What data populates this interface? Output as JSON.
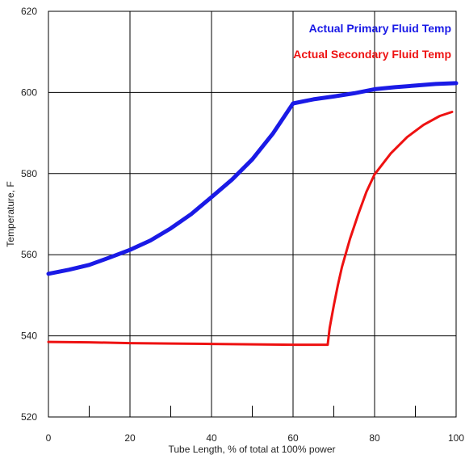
{
  "chart_data": {
    "type": "line",
    "title": "",
    "xlabel": "Tube Length, % of total at 100% power",
    "ylabel": "Temperature, F",
    "xlim": [
      0,
      100
    ],
    "ylim": [
      520,
      620
    ],
    "xticks": [
      0,
      20,
      40,
      60,
      80,
      100
    ],
    "yticks": [
      520,
      540,
      560,
      580,
      600,
      620
    ],
    "grid": true,
    "legend_position": "top-right",
    "series": [
      {
        "name": "Actual Primary Fluid Temp",
        "color": "#1a1ae6",
        "x": [
          0,
          5,
          10,
          15,
          20,
          25,
          30,
          35,
          40,
          45,
          50,
          55,
          60,
          65,
          70,
          75,
          80,
          85,
          90,
          95,
          100
        ],
        "y": [
          555.3,
          556.3,
          557.5,
          559.3,
          561.2,
          563.5,
          566.5,
          570.0,
          574.2,
          578.5,
          583.5,
          589.8,
          597.3,
          598.3,
          599.0,
          599.8,
          600.8,
          601.3,
          601.7,
          602.1,
          602.3
        ]
      },
      {
        "name": "Actual Secondary Fluid Temp",
        "color": "#ee1111",
        "x": [
          0,
          10,
          20,
          30,
          40,
          50,
          60,
          68.5,
          69,
          70,
          71,
          72,
          74,
          76,
          78,
          80,
          84,
          88,
          92,
          96,
          99
        ],
        "y": [
          538.5,
          538.4,
          538.2,
          538.1,
          538.0,
          537.9,
          537.8,
          537.8,
          542.0,
          547.5,
          552.5,
          557.0,
          564.0,
          570.0,
          575.5,
          579.8,
          585.0,
          589.0,
          592.0,
          594.2,
          595.2
        ]
      }
    ]
  }
}
